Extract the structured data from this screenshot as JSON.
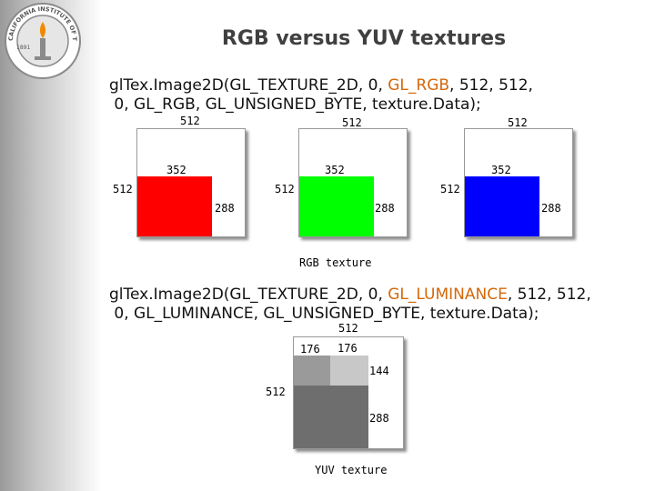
{
  "logo": {
    "year": "1891",
    "text": "CALIFORNIA INSTITUTE OF TECHNOLOGY"
  },
  "title": "RGB versus YUV textures",
  "rgb_call": {
    "line1_pre": "glTex.Image2D(GL_TEXTURE_2D, 0, ",
    "line1_hl": "GL_RGB",
    "line1_post": ", 512, 512,",
    "line2": " 0, GL_RGB, GL_UNSIGNED_BYTE, texture.Data);"
  },
  "rgb_textures": [
    {
      "width_label": "512",
      "height_label": "512",
      "inner_w_label": "352",
      "inner_h_label": "288",
      "color": "#ff0000"
    },
    {
      "width_label": "512",
      "height_label": "512",
      "inner_w_label": "352",
      "inner_h_label": "288",
      "color": "#00ff00"
    },
    {
      "width_label": "512",
      "height_label": "512",
      "inner_w_label": "352",
      "inner_h_label": "288",
      "color": "#0000ff"
    }
  ],
  "rgb_caption": "RGB texture",
  "yuv_call": {
    "line1_pre": "glTex.Image2D(GL_TEXTURE_2D, 0, ",
    "line1_hl": "GL_LUMINANCE",
    "line1_post": ", 512, 512,",
    "line2": " 0, GL_LUMINANCE, GL_UNSIGNED_BYTE, texture.Data);"
  },
  "yuv_texture": {
    "width_label": "512",
    "height_label": "512",
    "u_w_label": "176",
    "v_w_label": "176",
    "uv_h_label": "144",
    "y_h_label": "288",
    "y_color": "#6e6e6e",
    "u_color": "#9a9a9a",
    "v_color": "#c8c8c8"
  },
  "yuv_caption": "YUV texture"
}
